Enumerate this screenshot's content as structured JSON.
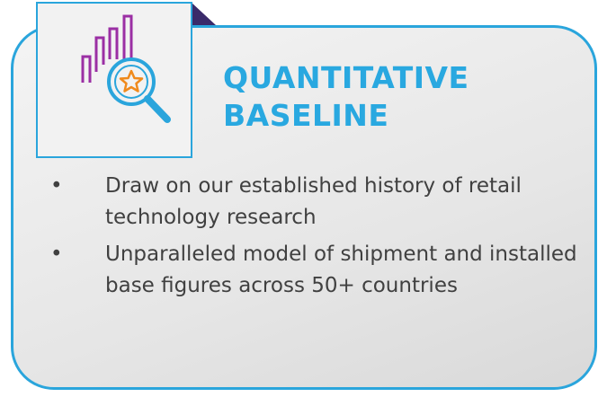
{
  "card": {
    "title": "QUANTITATIVE BASELINE",
    "bullets": [
      "Draw on our established history of retail technology research",
      "Unparalleled model of shipment and installed base figures across 50+ countries"
    ]
  }
}
